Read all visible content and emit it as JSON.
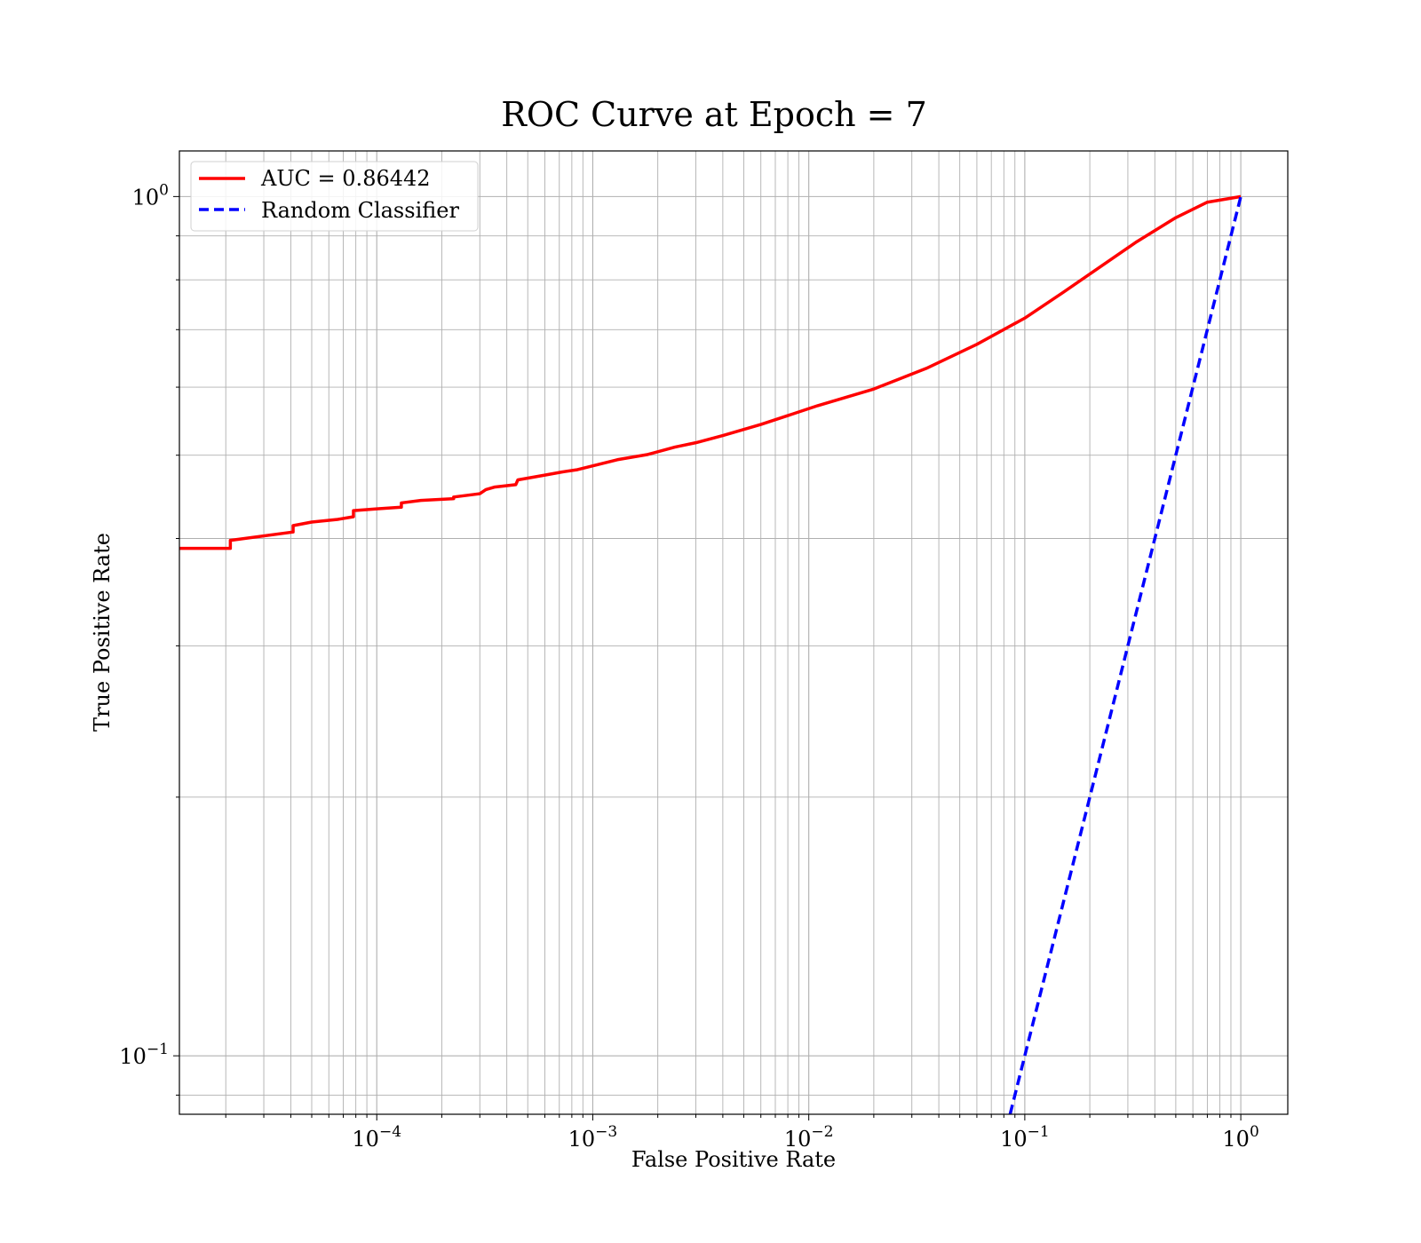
{
  "chart_data": {
    "type": "line",
    "title": "ROC Curve at Epoch = 7",
    "xlabel": "False Positive Rate",
    "ylabel": "True Positive Rate",
    "xscale": "log",
    "yscale": "log",
    "xlim": [
      1.22e-05,
      1.65
    ],
    "ylim": [
      0.0855,
      1.13
    ],
    "grid": "major and minor",
    "legend_position": "top-left",
    "x_ticks": [
      {
        "base": "10",
        "exp": "−4",
        "value": 0.0001
      },
      {
        "base": "10",
        "exp": "−3",
        "value": 0.001
      },
      {
        "base": "10",
        "exp": "−2",
        "value": 0.01
      },
      {
        "base": "10",
        "exp": "−1",
        "value": 0.1
      },
      {
        "base": "10",
        "exp": "0",
        "value": 1
      }
    ],
    "y_ticks": [
      {
        "base": "10",
        "exp": "−1",
        "value": 0.1
      },
      {
        "base": "10",
        "exp": "0",
        "value": 1
      }
    ],
    "series": [
      {
        "name": "AUC = 0.86442",
        "color": "#ff0000",
        "style": "solid",
        "points": [
          [
            1.22e-05,
            0.3895
          ],
          [
            2.1e-05,
            0.3895
          ],
          [
            2.1e-05,
            0.398
          ],
          [
            4.1e-05,
            0.407
          ],
          [
            4.1e-05,
            0.414
          ],
          [
            5e-05,
            0.418
          ],
          [
            6.6e-05,
            0.421
          ],
          [
            7.8e-05,
            0.424
          ],
          [
            7.8e-05,
            0.431
          ],
          [
            0.0001,
            0.433
          ],
          [
            0.00013,
            0.435
          ],
          [
            0.00013,
            0.44
          ],
          [
            0.00016,
            0.443
          ],
          [
            0.000227,
            0.445
          ],
          [
            0.000227,
            0.447
          ],
          [
            0.0003,
            0.451
          ],
          [
            0.00032,
            0.456
          ],
          [
            0.00035,
            0.459
          ],
          [
            0.00044,
            0.462
          ],
          [
            0.00045,
            0.468
          ],
          [
            0.0006,
            0.474
          ],
          [
            0.00072,
            0.478
          ],
          [
            0.00085,
            0.481
          ],
          [
            0.001,
            0.486
          ],
          [
            0.0013,
            0.494
          ],
          [
            0.0018,
            0.501
          ],
          [
            0.0024,
            0.511
          ],
          [
            0.003,
            0.517
          ],
          [
            0.004,
            0.527
          ],
          [
            0.006,
            0.543
          ],
          [
            0.008,
            0.556
          ],
          [
            0.011,
            0.571
          ],
          [
            0.02,
            0.597
          ],
          [
            0.035,
            0.631
          ],
          [
            0.06,
            0.673
          ],
          [
            0.1,
            0.722
          ],
          [
            0.15,
            0.773
          ],
          [
            0.22,
            0.826
          ],
          [
            0.33,
            0.886
          ],
          [
            0.5,
            0.945
          ],
          [
            0.7,
            0.985
          ],
          [
            1.0,
            1.0
          ]
        ]
      },
      {
        "name": "Random Classifier",
        "color": "#0000ff",
        "style": "dashed",
        "points": [
          [
            0.0855,
            0.0855
          ],
          [
            1.0,
            1.0
          ]
        ]
      }
    ]
  }
}
